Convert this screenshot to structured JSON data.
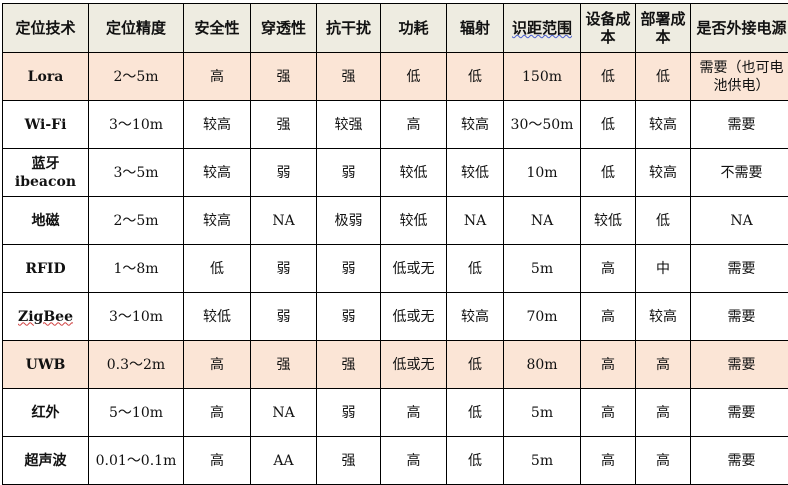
{
  "headers": [
    "定位技术",
    "定位精度",
    "安全性",
    "穿透性",
    "抗干扰",
    "功耗",
    "辐射",
    "识距范围",
    "设备成本",
    "部署成本",
    "是否外接电源"
  ],
  "rows": [
    {
      "highlight": true,
      "cells": [
        "Lora",
        "2～5m",
        "高",
        "强",
        "强",
        "低",
        "低",
        "150m",
        "低",
        "低",
        "需要（也可电池供电）"
      ]
    },
    {
      "highlight": false,
      "cells": [
        "Wi-Fi",
        "3～10m",
        "较高",
        "强",
        "较强",
        "高",
        "较高",
        "30～50m",
        "低",
        "较高",
        "需要"
      ]
    },
    {
      "highlight": false,
      "cells": [
        "蓝牙ibeacon",
        "3～5m",
        "较高",
        "弱",
        "弱",
        "较低",
        "较低",
        "10m",
        "低",
        "较高",
        "不需要"
      ]
    },
    {
      "highlight": false,
      "cells": [
        "地磁",
        "2～5m",
        "较高",
        "NA",
        "极弱",
        "较低",
        "NA",
        "NA",
        "较低",
        "低",
        "NA"
      ]
    },
    {
      "highlight": false,
      "cells": [
        "RFID",
        "1～8m",
        "低",
        "弱",
        "弱",
        "低或无",
        "低",
        "5m",
        "高",
        "中",
        "需要"
      ]
    },
    {
      "highlight": false,
      "cells": [
        "ZigBee",
        "3～10m",
        "较低",
        "弱",
        "弱",
        "低或无",
        "较高",
        "70m",
        "高",
        "较高",
        "需要"
      ]
    },
    {
      "highlight": true,
      "cells": [
        "UWB",
        "0.3～2m",
        "高",
        "强",
        "强",
        "低或无",
        "低",
        "80m",
        "高",
        "高",
        "需要"
      ]
    },
    {
      "highlight": false,
      "cells": [
        "红外",
        "5～10m",
        "高",
        "NA",
        "弱",
        "高",
        "低",
        "5m",
        "高",
        "高",
        "需要"
      ]
    },
    {
      "highlight": false,
      "cells": [
        "超声波",
        "0.01～0.1m",
        "高",
        "AA",
        "强",
        "高",
        "低",
        "5m",
        "高",
        "高",
        "需要"
      ]
    }
  ],
  "colors": {
    "header_bg": "#eeece1",
    "highlight_bg": "#fbe5d6"
  }
}
